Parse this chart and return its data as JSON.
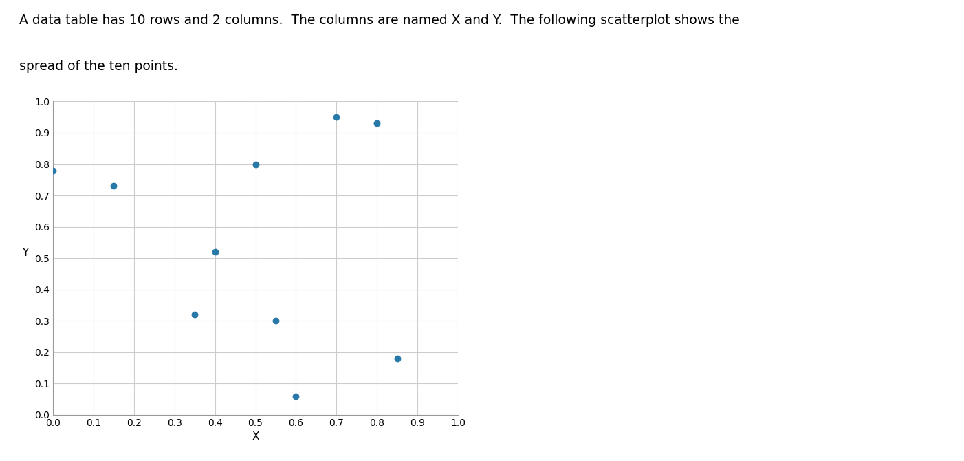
{
  "x": [
    0.0,
    0.15,
    0.35,
    0.4,
    0.5,
    0.55,
    0.6,
    0.7,
    0.8,
    0.85
  ],
  "y": [
    0.78,
    0.73,
    0.32,
    0.52,
    0.8,
    0.3,
    0.06,
    0.95,
    0.93,
    0.18
  ],
  "line1": "A data table has 10 rows and 2 columns.  The columns are named X and Y.  The following scatterplot shows the",
  "line2": "spread of the ten points.",
  "xlabel": "X",
  "ylabel": "Y",
  "xlim": [
    0.0,
    1.0
  ],
  "ylim": [
    0.0,
    1.0
  ],
  "xticks": [
    0.0,
    0.1,
    0.2,
    0.3,
    0.4,
    0.5,
    0.6,
    0.7,
    0.8,
    0.9,
    1.0
  ],
  "yticks": [
    0.0,
    0.1,
    0.2,
    0.3,
    0.4,
    0.5,
    0.6,
    0.7,
    0.8,
    0.9,
    1.0
  ],
  "dot_color": "#2878a8",
  "dot_size": 50,
  "grid_color": "#cccccc",
  "background_color": "#ffffff",
  "text_fontsize": 13.5,
  "axis_label_fontsize": 11,
  "tick_fontsize": 10
}
